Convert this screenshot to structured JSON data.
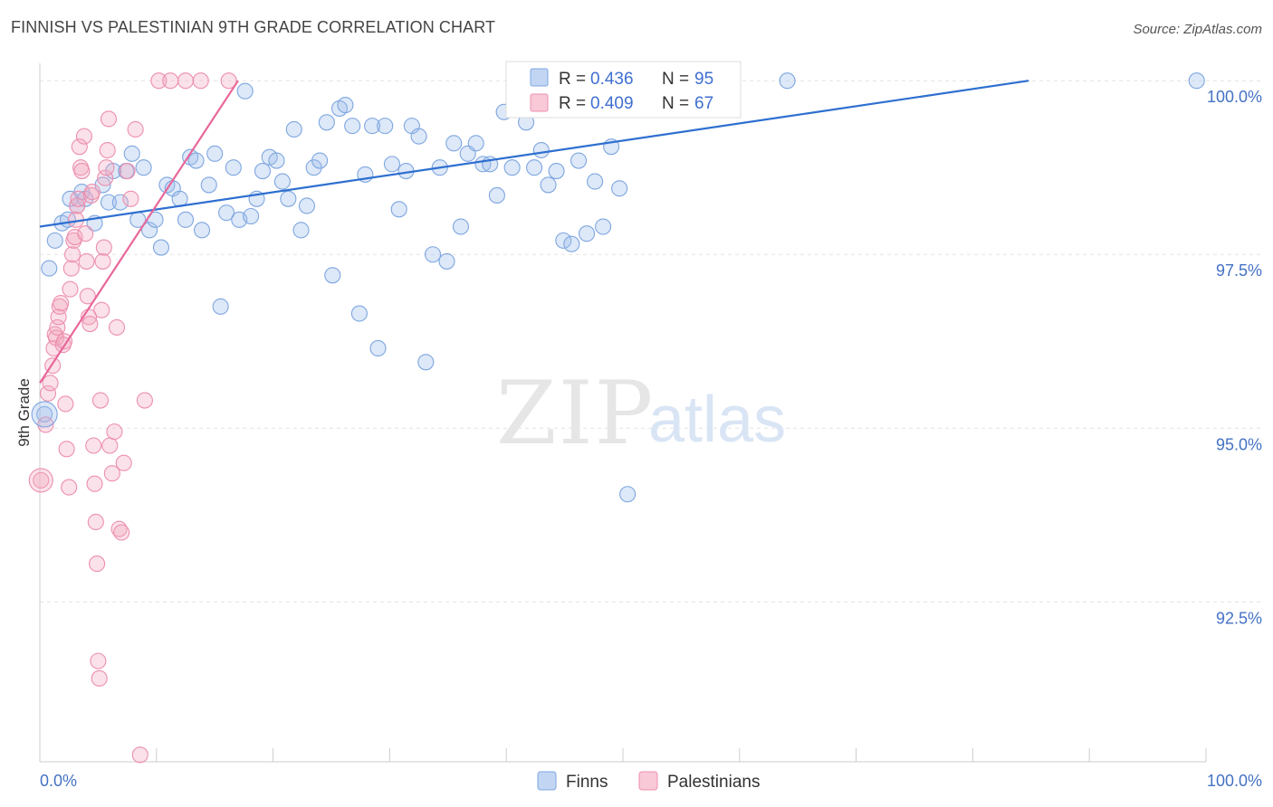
{
  "title": "FINNISH VS PALESTINIAN 9TH GRADE CORRELATION CHART",
  "source": "Source: ZipAtlas.com",
  "watermark": {
    "zip": "ZIP",
    "atlas": "atlas"
  },
  "legend_box": {
    "rows": [
      {
        "r_label": "R =",
        "r_value": "0.436",
        "n_label": "N =",
        "n_value": "95",
        "color": "#9dbcea"
      },
      {
        "r_label": "R =",
        "r_value": "0.409",
        "n_label": "N =",
        "n_value": "67",
        "color": "#f4a9c0"
      }
    ]
  },
  "bottom_legend": [
    {
      "label": "Finns",
      "color": "#9dbcea"
    },
    {
      "label": "Palestinians",
      "color": "#f4a9c0"
    }
  ],
  "chart_data": {
    "type": "scatter",
    "title": "FINNISH VS PALESTINIAN 9TH GRADE CORRELATION CHART",
    "xlabel": "",
    "ylabel": "9th Grade",
    "xlim": [
      0,
      100
    ],
    "ylim": [
      90.2,
      100.25
    ],
    "x_tick_labels": [
      "0.0%",
      "100.0%"
    ],
    "y_ticks": [
      92.5,
      95.0,
      97.5,
      100.0
    ],
    "y_tick_labels": [
      "92.5%",
      "95.0%",
      "97.5%",
      "100.0%"
    ],
    "grid": true,
    "series": [
      {
        "name": "Finns",
        "color": "#9dbcea",
        "line_color": "#2e6fd0",
        "trend": {
          "x": [
            0,
            84.8
          ],
          "y": [
            97.9,
            100.0
          ]
        },
        "points": [
          [
            0.4,
            95.2
          ],
          [
            0.8,
            97.3
          ],
          [
            1.3,
            97.7
          ],
          [
            1.9,
            97.95
          ],
          [
            2.4,
            98.0
          ],
          [
            2.6,
            98.3
          ],
          [
            3.2,
            98.2
          ],
          [
            3.6,
            98.4
          ],
          [
            3.9,
            98.3
          ],
          [
            4.7,
            97.95
          ],
          [
            5.4,
            98.5
          ],
          [
            5.9,
            98.25
          ],
          [
            6.3,
            98.7
          ],
          [
            6.9,
            98.25
          ],
          [
            7.4,
            98.7
          ],
          [
            7.9,
            98.95
          ],
          [
            8.4,
            98.0
          ],
          [
            8.9,
            98.75
          ],
          [
            9.4,
            97.85
          ],
          [
            9.9,
            98.0
          ],
          [
            10.4,
            97.6
          ],
          [
            10.9,
            98.5
          ],
          [
            11.4,
            98.45
          ],
          [
            12.0,
            98.3
          ],
          [
            12.5,
            98.0
          ],
          [
            12.9,
            98.9
          ],
          [
            13.4,
            98.85
          ],
          [
            13.9,
            97.85
          ],
          [
            14.5,
            98.5
          ],
          [
            15.0,
            98.95
          ],
          [
            15.5,
            96.75
          ],
          [
            16.0,
            98.1
          ],
          [
            16.6,
            98.75
          ],
          [
            17.1,
            98.0
          ],
          [
            17.6,
            99.85
          ],
          [
            18.1,
            98.05
          ],
          [
            18.6,
            98.3
          ],
          [
            19.1,
            98.7
          ],
          [
            19.7,
            98.9
          ],
          [
            20.3,
            98.85
          ],
          [
            20.8,
            98.55
          ],
          [
            21.3,
            98.3
          ],
          [
            21.8,
            99.3
          ],
          [
            22.4,
            97.85
          ],
          [
            22.9,
            98.2
          ],
          [
            23.5,
            98.75
          ],
          [
            24.0,
            98.85
          ],
          [
            24.6,
            99.4
          ],
          [
            25.1,
            97.2
          ],
          [
            25.7,
            99.6
          ],
          [
            26.2,
            99.65
          ],
          [
            26.8,
            99.35
          ],
          [
            27.4,
            96.65
          ],
          [
            27.9,
            98.65
          ],
          [
            28.5,
            99.35
          ],
          [
            29.0,
            96.15
          ],
          [
            29.6,
            99.35
          ],
          [
            30.2,
            98.8
          ],
          [
            30.8,
            98.15
          ],
          [
            31.4,
            98.7
          ],
          [
            31.9,
            99.35
          ],
          [
            32.5,
            99.2
          ],
          [
            33.1,
            95.95
          ],
          [
            33.7,
            97.5
          ],
          [
            34.3,
            98.75
          ],
          [
            34.9,
            97.4
          ],
          [
            35.5,
            99.1
          ],
          [
            36.1,
            97.9
          ],
          [
            36.7,
            98.95
          ],
          [
            37.4,
            99.1
          ],
          [
            38.0,
            98.8
          ],
          [
            38.6,
            98.8
          ],
          [
            39.2,
            98.35
          ],
          [
            39.8,
            99.55
          ],
          [
            40.5,
            98.75
          ],
          [
            41.1,
            99.6
          ],
          [
            41.7,
            99.4
          ],
          [
            42.4,
            98.75
          ],
          [
            43.0,
            99.0
          ],
          [
            43.6,
            98.5
          ],
          [
            44.3,
            98.7
          ],
          [
            44.9,
            97.7
          ],
          [
            45.6,
            97.65
          ],
          [
            46.2,
            98.85
          ],
          [
            46.9,
            97.8
          ],
          [
            47.6,
            98.55
          ],
          [
            48.3,
            97.9
          ],
          [
            49.0,
            99.05
          ],
          [
            49.7,
            98.45
          ],
          [
            50.4,
            94.05
          ],
          [
            52.6,
            100.0
          ],
          [
            55.6,
            100.0
          ],
          [
            57.5,
            100.0
          ],
          [
            64.1,
            100.0
          ],
          [
            99.2,
            100.0
          ]
        ]
      },
      {
        "name": "Palestinians",
        "color": "#f4a9c0",
        "line_color": "#e8679a",
        "trend": {
          "x": [
            0,
            17.0
          ],
          "y": [
            95.65,
            100.0
          ]
        },
        "points": [
          [
            0.1,
            94.25
          ],
          [
            0.5,
            95.05
          ],
          [
            0.7,
            95.5
          ],
          [
            0.9,
            95.65
          ],
          [
            1.1,
            95.9
          ],
          [
            1.2,
            96.15
          ],
          [
            1.3,
            96.35
          ],
          [
            1.4,
            96.3
          ],
          [
            1.5,
            96.45
          ],
          [
            1.6,
            96.6
          ],
          [
            1.7,
            96.75
          ],
          [
            1.8,
            96.8
          ],
          [
            2.0,
            96.2
          ],
          [
            2.1,
            96.25
          ],
          [
            2.2,
            95.35
          ],
          [
            2.3,
            94.7
          ],
          [
            2.5,
            94.15
          ],
          [
            2.6,
            97.0
          ],
          [
            2.7,
            97.3
          ],
          [
            2.8,
            97.5
          ],
          [
            2.9,
            97.7
          ],
          [
            3.0,
            97.75
          ],
          [
            3.1,
            98.0
          ],
          [
            3.2,
            98.2
          ],
          [
            3.3,
            98.3
          ],
          [
            3.4,
            99.05
          ],
          [
            3.5,
            98.75
          ],
          [
            3.6,
            98.7
          ],
          [
            3.8,
            99.2
          ],
          [
            3.9,
            97.8
          ],
          [
            4.0,
            97.4
          ],
          [
            4.1,
            96.9
          ],
          [
            4.2,
            96.6
          ],
          [
            4.3,
            96.5
          ],
          [
            4.4,
            98.35
          ],
          [
            4.5,
            98.4
          ],
          [
            4.6,
            94.75
          ],
          [
            4.7,
            94.2
          ],
          [
            4.8,
            93.65
          ],
          [
            4.9,
            93.05
          ],
          [
            5.0,
            91.65
          ],
          [
            5.1,
            91.4
          ],
          [
            5.2,
            95.4
          ],
          [
            5.3,
            96.7
          ],
          [
            5.4,
            97.4
          ],
          [
            5.5,
            97.6
          ],
          [
            5.6,
            98.6
          ],
          [
            5.7,
            98.75
          ],
          [
            5.8,
            99.0
          ],
          [
            5.9,
            99.45
          ],
          [
            6.0,
            94.75
          ],
          [
            6.2,
            94.35
          ],
          [
            6.4,
            94.95
          ],
          [
            6.6,
            96.45
          ],
          [
            6.8,
            93.55
          ],
          [
            7.0,
            93.5
          ],
          [
            7.2,
            94.5
          ],
          [
            7.5,
            98.7
          ],
          [
            7.8,
            98.3
          ],
          [
            8.2,
            99.3
          ],
          [
            8.6,
            90.3
          ],
          [
            9.0,
            95.4
          ],
          [
            10.2,
            100.0
          ],
          [
            11.2,
            100.0
          ],
          [
            12.5,
            100.0
          ],
          [
            13.8,
            100.0
          ],
          [
            16.2,
            100.0
          ]
        ]
      }
    ],
    "legend": "top-center"
  }
}
